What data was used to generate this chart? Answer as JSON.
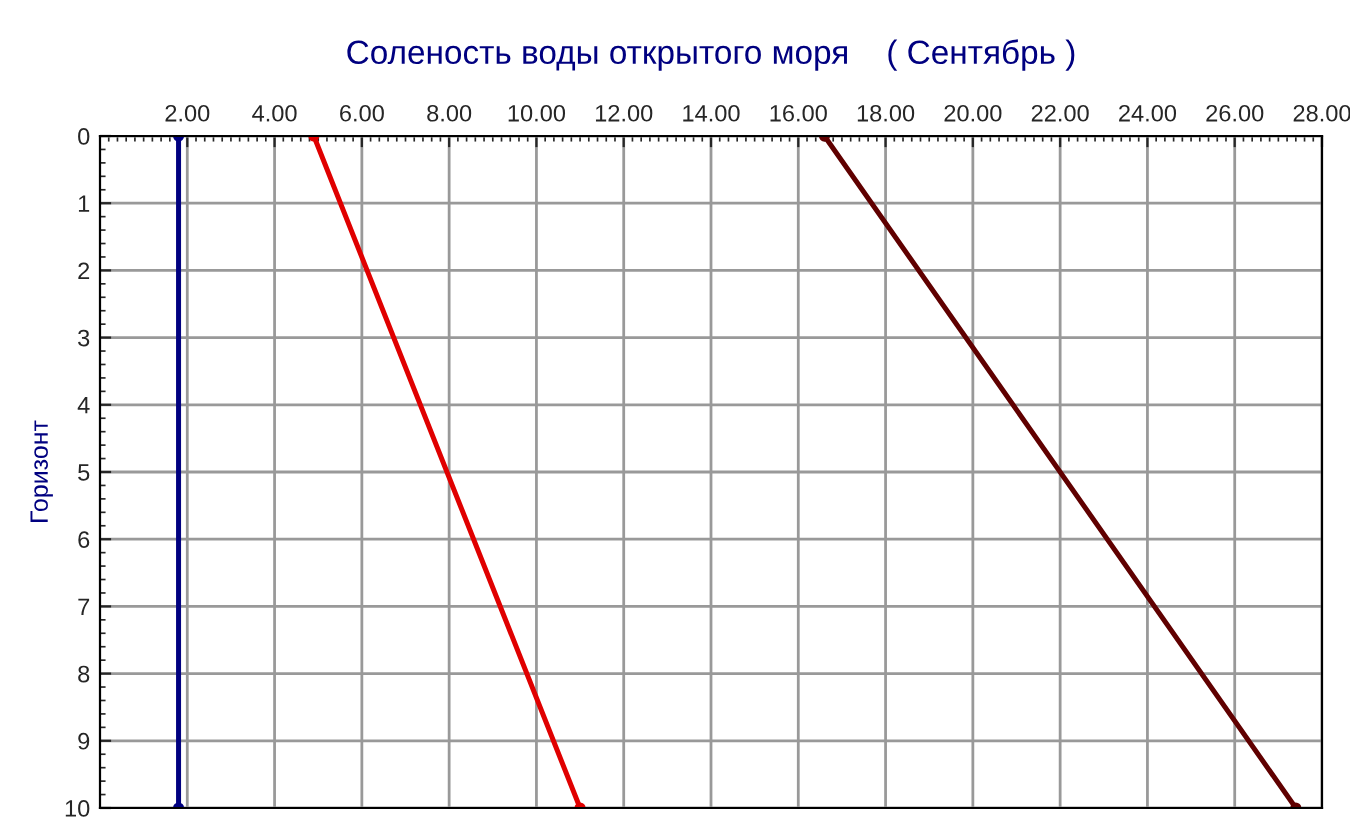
{
  "chart_data": {
    "type": "line",
    "title": "Соленость воды открытого моря    ( Сентябрь )",
    "ylabel": "Горизонт",
    "series": [
      {
        "color": "#000080",
        "x": [
          1.8,
          1.8
        ],
        "values": [
          0,
          10
        ]
      },
      {
        "color": "#e00000",
        "x": [
          4.9,
          11.0
        ],
        "values": [
          0,
          10
        ]
      },
      {
        "color": "#600000",
        "x": [
          16.6,
          27.4
        ],
        "values": [
          0,
          10
        ]
      }
    ],
    "xlim": [
      0,
      28
    ],
    "xticks": [
      {
        "value": 2,
        "label": "2.00"
      },
      {
        "value": 4,
        "label": "4.00"
      },
      {
        "value": 6,
        "label": "6.00"
      },
      {
        "value": 8,
        "label": "8.00"
      },
      {
        "value": 10,
        "label": "10.00"
      },
      {
        "value": 12,
        "label": "12.00"
      },
      {
        "value": 14,
        "label": "14.00"
      },
      {
        "value": 16,
        "label": "16.00"
      },
      {
        "value": 18,
        "label": "18.00"
      },
      {
        "value": 20,
        "label": "20.00"
      },
      {
        "value": 22,
        "label": "22.00"
      },
      {
        "value": 24,
        "label": "24.00"
      },
      {
        "value": 26,
        "label": "26.00"
      },
      {
        "value": 28,
        "label": "28.00"
      }
    ],
    "ylim": [
      10,
      0
    ],
    "yticks": [
      0,
      1,
      2,
      3,
      4,
      5,
      6,
      7,
      8,
      9,
      10
    ],
    "grid": true,
    "marker": "circle",
    "line_style": "solid",
    "legend": false
  }
}
